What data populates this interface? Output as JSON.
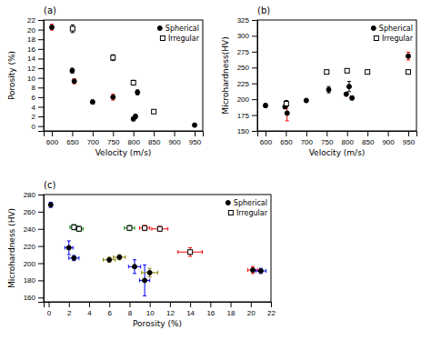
{
  "chart_data": [
    {
      "type": "scatter",
      "title": "(a)",
      "x_label": "Velocity (m/s)",
      "y_label": "Porosity (%)",
      "xlim": [
        580,
        970
      ],
      "ylim": [
        -1,
        22
      ],
      "xticks": [
        600,
        650,
        700,
        750,
        800,
        850,
        900,
        950
      ],
      "yticks": [
        0,
        2,
        4,
        6,
        8,
        10,
        12,
        14,
        16,
        18,
        20,
        22
      ],
      "legend": "upper right",
      "series": [
        {
          "name": "Spherical",
          "marker": "circle",
          "color": "black",
          "x": [
            600,
            650,
            655,
            700,
            750,
            800,
            805,
            810,
            950
          ],
          "values": [
            20.5,
            11.5,
            9.3,
            5.0,
            6.0,
            1.5,
            2.0,
            7.0,
            0.2
          ],
          "yerr_lo": [
            0.6,
            0.5,
            0.5,
            0.4,
            0.6,
            0.4,
            0.4,
            0.5,
            0.3
          ],
          "yerr_hi": [
            0.6,
            0.5,
            0.5,
            0.4,
            0.6,
            0.4,
            0.4,
            0.5,
            0.3
          ],
          "yerr_colors": [
            "red",
            "black",
            "red",
            "black",
            "red",
            "black",
            "black",
            "black",
            "red"
          ]
        },
        {
          "name": "Irregular",
          "marker": "square-open",
          "color": "black",
          "x": [
            651,
            750,
            800,
            850
          ],
          "values": [
            20.2,
            14.2,
            9.0,
            3.0
          ],
          "yerr_lo": [
            0.8,
            0.6,
            0.5,
            0.3
          ],
          "yerr_hi": [
            0.8,
            0.6,
            0.5,
            0.3
          ],
          "yerr_colors": [
            "black",
            "black",
            "black",
            "black"
          ]
        }
      ]
    },
    {
      "type": "scatter",
      "title": "(b)",
      "x_label": "Velocity (m/s)",
      "y_label": "Microhardness(HV)",
      "xlim": [
        580,
        970
      ],
      "ylim": [
        150,
        325
      ],
      "xticks": [
        600,
        650,
        700,
        750,
        800,
        850,
        900,
        950
      ],
      "yticks": [
        150,
        175,
        200,
        225,
        250,
        275,
        300,
        325
      ],
      "legend": "upper right",
      "series": [
        {
          "name": "Spherical",
          "marker": "circle",
          "color": "black",
          "x": [
            600,
            648,
            653,
            700,
            755,
            798,
            805,
            812,
            950
          ],
          "values": [
            190,
            188,
            178,
            198,
            215,
            208,
            220,
            202,
            268
          ],
          "yerr_lo": [
            3,
            3,
            12,
            3,
            5,
            3,
            8,
            3,
            6
          ],
          "yerr_hi": [
            3,
            3,
            12,
            3,
            5,
            3,
            8,
            3,
            6
          ],
          "yerr_colors": [
            "black",
            "black",
            "red",
            "black",
            "black",
            "red",
            "black",
            "black",
            "red"
          ]
        },
        {
          "name": "Irregular",
          "marker": "square-open",
          "color": "black",
          "x": [
            651,
            750,
            800,
            850,
            950
          ],
          "values": [
            193,
            243,
            245,
            243,
            243
          ],
          "yerr_lo": [
            5,
            3,
            3,
            3,
            3
          ],
          "yerr_hi": [
            5,
            3,
            3,
            3,
            3
          ],
          "yerr_colors": [
            "black",
            "black",
            "black",
            "black",
            "black"
          ]
        }
      ]
    },
    {
      "type": "scatter",
      "title": "(c)",
      "x_label": "Porosity (%)",
      "y_label": "Microhardness (HV)",
      "xlim": [
        -0.5,
        22
      ],
      "ylim": [
        155,
        280
      ],
      "xticks": [
        0,
        2,
        4,
        6,
        8,
        10,
        12,
        14,
        16,
        18,
        20,
        22
      ],
      "yticks": [
        160,
        180,
        200,
        220,
        240,
        260,
        280
      ],
      "legend": "upper right",
      "series": [
        {
          "name": "Spherical",
          "marker": "circle",
          "color": "black",
          "x": [
            0.2,
            2.0,
            2.5,
            6.0,
            7.0,
            8.5,
            9.5,
            10.0,
            20.2,
            21.0
          ],
          "values": [
            268,
            218,
            206,
            204,
            207,
            196,
            180,
            189,
            192,
            191
          ],
          "xerr": [
            0.1,
            0.4,
            0.5,
            0.6,
            0.6,
            0.6,
            0.5,
            0.8,
            0.5,
            0.5
          ],
          "yerr_lo": [
            3,
            8,
            3,
            3,
            3,
            8,
            18,
            5,
            4,
            3
          ],
          "yerr_hi": [
            3,
            8,
            3,
            3,
            3,
            8,
            18,
            5,
            4,
            3
          ],
          "xerr_colors": [
            "blue",
            "blue",
            "blue",
            "olive",
            "olive",
            "blue",
            "blue",
            "olive",
            "red",
            "blue"
          ],
          "yerr_colors": [
            "blue",
            "blue",
            "blue",
            "olive",
            "olive",
            "blue",
            "blue",
            "olive",
            "red",
            "blue"
          ]
        },
        {
          "name": "Irregular",
          "marker": "square-open",
          "color": "black",
          "x": [
            2.5,
            3.0,
            8.0,
            9.5,
            11.0,
            14.0
          ],
          "values": [
            242,
            240,
            241,
            241,
            240,
            213
          ],
          "xerr": [
            0.4,
            0.4,
            0.5,
            0.5,
            0.8,
            1.2
          ],
          "yerr_lo": [
            3,
            3,
            3,
            3,
            3,
            5
          ],
          "yerr_hi": [
            3,
            3,
            3,
            3,
            3,
            5
          ],
          "xerr_colors": [
            "green",
            "green",
            "green",
            "red",
            "red",
            "red"
          ],
          "yerr_colors": [
            "green",
            "green",
            "green",
            "red",
            "red",
            "red"
          ]
        }
      ]
    }
  ]
}
